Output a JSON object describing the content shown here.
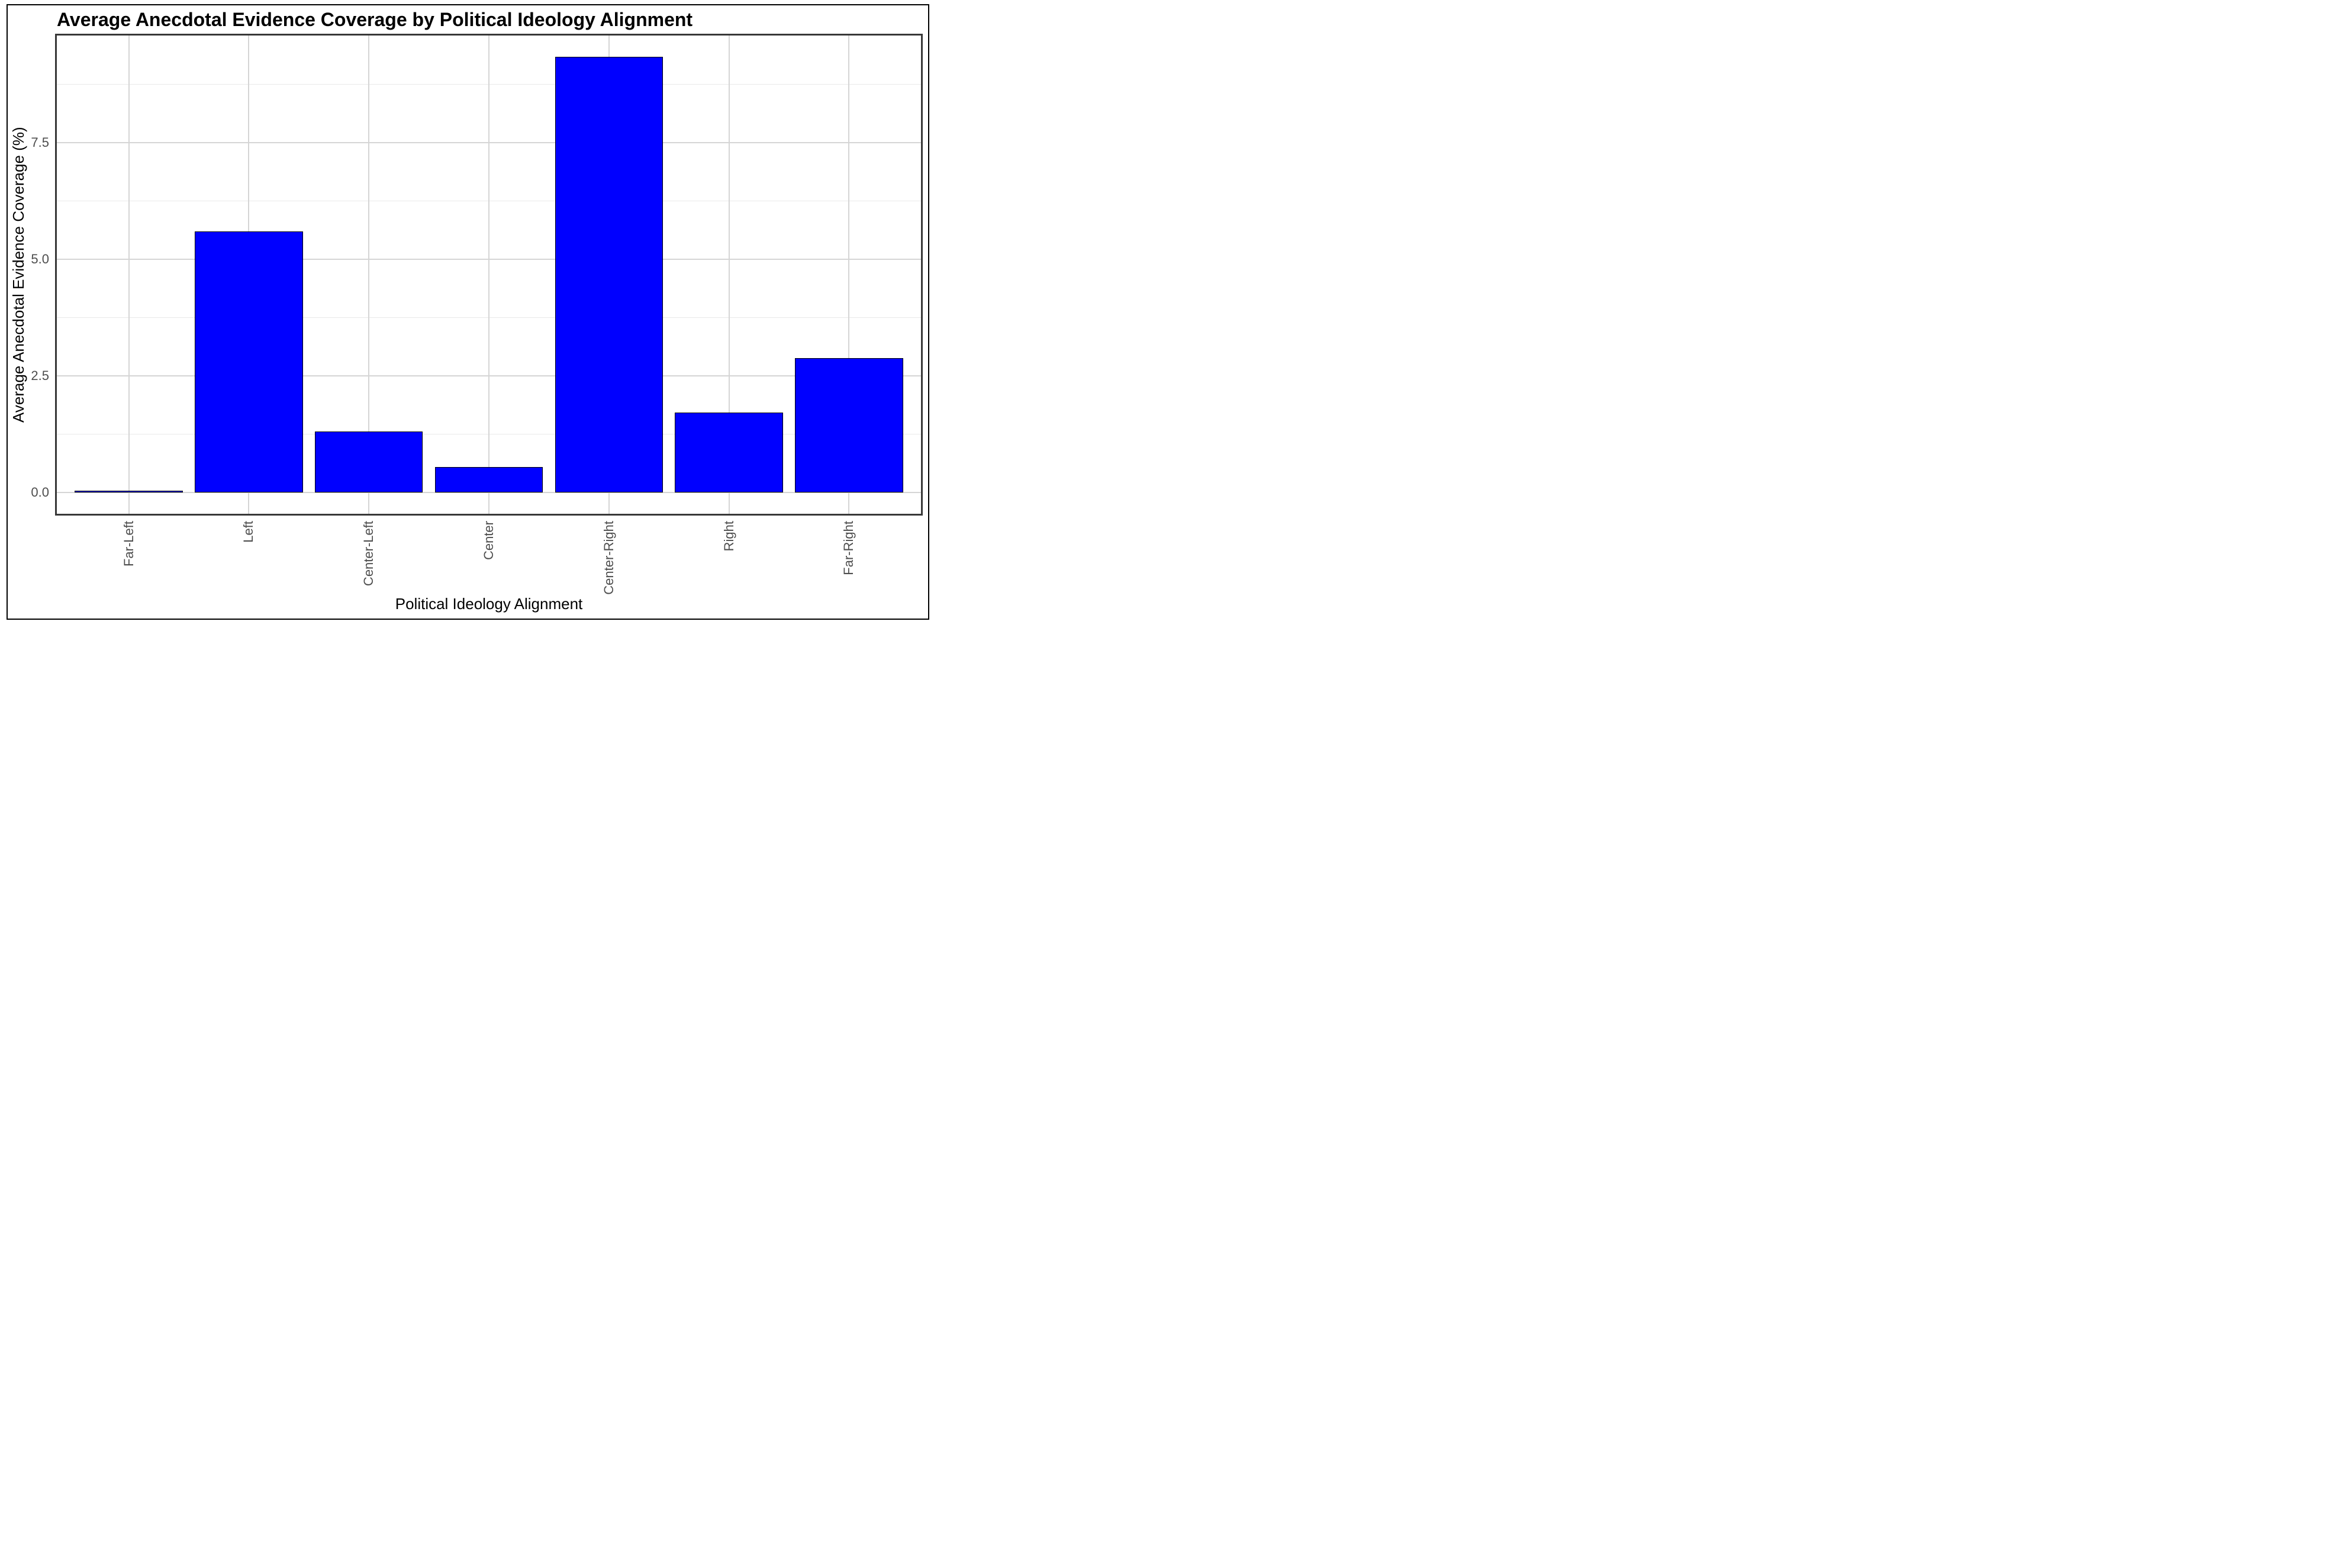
{
  "chart_data": {
    "type": "bar",
    "title": "Average Anecdotal Evidence Coverage by Political Ideology Alignment",
    "xlabel": "Political Ideology Alignment",
    "ylabel": "Average Anecdotal Evidence Coverage (%)",
    "categories": [
      "Far-Left",
      "Left",
      "Center-Left",
      "Center",
      "Center-Right",
      "Right",
      "Far-Right"
    ],
    "values": [
      0.02,
      5.6,
      1.31,
      0.54,
      9.34,
      1.71,
      2.88
    ],
    "yticks": [
      {
        "label": "0.0",
        "value": 0
      },
      {
        "label": "2.5",
        "value": 2.5
      },
      {
        "label": "5.0",
        "value": 5
      },
      {
        "label": "7.5",
        "value": 7.5
      }
    ],
    "minor_gridlines": [
      1.25,
      3.75,
      6.25,
      8.75
    ],
    "ylim": [
      -0.46,
      9.82
    ],
    "grid": true,
    "legend_position": "none",
    "bar_fill_color": "#0000ff",
    "bar_stroke_color": "#000000",
    "grid_major_color": "#d5d5d5",
    "grid_minor_color": "#e9e9e9",
    "tick_label_color": "#4d4d4d",
    "panel_border_color": "#383838",
    "figure_border_color": "#000000"
  }
}
